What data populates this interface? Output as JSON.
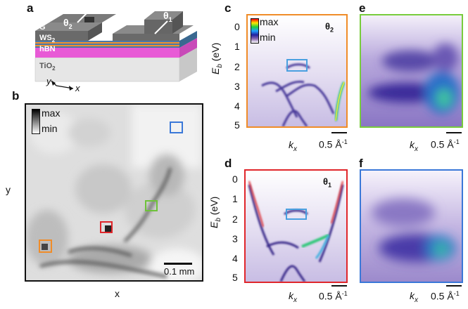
{
  "panels": {
    "a": "a",
    "b": "b",
    "c": "c",
    "d": "d",
    "e": "e",
    "f": "f"
  },
  "device": {
    "layers": [
      "G",
      "WS",
      "2",
      "hBN",
      "TiO",
      "2"
    ],
    "theta1": "θ",
    "theta1_sub": "1",
    "theta2": "θ",
    "theta2_sub": "2",
    "axis_y": "y",
    "axis_x": "x"
  },
  "map": {
    "legend_max": "max",
    "legend_min": "min",
    "scalebar": "0.1 mm",
    "xlabel": "x",
    "ylabel": "y",
    "box_colors": {
      "blue": "#3a78d8",
      "green": "#6ec23a",
      "red": "#e0262b",
      "orange": "#f08c28"
    }
  },
  "spectra": {
    "ylabel_E": "E",
    "ylabel_sub": "b",
    "ylabel_unit": " (eV)",
    "yticks": [
      "0",
      "1",
      "2",
      "3",
      "4",
      "5"
    ],
    "kx": "k",
    "kx_sub": "x",
    "scale": "0.5 Å",
    "scale_sup": "-1",
    "legend_max": "max",
    "legend_min": "min",
    "c_label": "θ",
    "c_label_sub": "2",
    "d_label": "θ",
    "d_label_sub": "1",
    "frame_colors": {
      "c": "#f08c28",
      "d": "#e0262b",
      "e": "#78cc3c",
      "f": "#3a78d8"
    }
  }
}
